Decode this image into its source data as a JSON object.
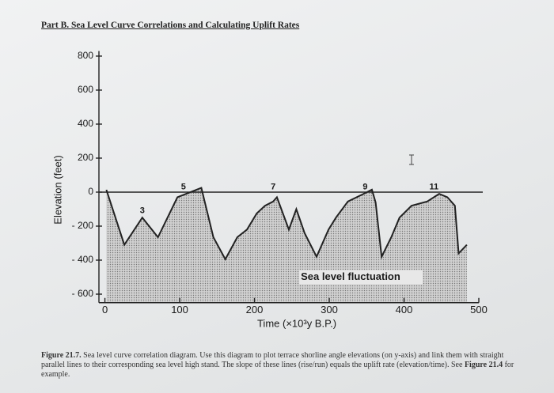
{
  "heading": "Part B. Sea Level Curve Correlations and Calculating Uplift Rates",
  "chart_data": {
    "type": "line",
    "xlabel": "Time (×10³y B.P.)",
    "ylabel": "Elevation (feet)",
    "xlim": [
      -8,
      500
    ],
    "ylim": [
      -650,
      830
    ],
    "xticks": [
      0,
      100,
      200,
      300,
      400,
      500
    ],
    "yticks": [
      800,
      600,
      400,
      200,
      0,
      {
        "value": -200,
        "label": "- 200"
      },
      {
        "value": -400,
        "label": "- 400"
      },
      {
        "value": -600,
        "label": "- 600"
      }
    ],
    "reference_line": 0,
    "series": [
      {
        "name": "Sea level fluctuation",
        "color": "#222222",
        "x": [
          2,
          26,
          50,
          71,
          97,
          129,
          145,
          161,
          177,
          190,
          203,
          214,
          225,
          230,
          246,
          256,
          267,
          283,
          299,
          309,
          325,
          346,
          357,
          362,
          370,
          383,
          394,
          410,
          431,
          447,
          458,
          468,
          473,
          484
        ],
        "values": [
          14,
          -310,
          -150,
          -265,
          -30,
          25,
          -265,
          -395,
          -265,
          -220,
          -125,
          -80,
          -55,
          -30,
          -220,
          -100,
          -240,
          -380,
          -220,
          -150,
          -55,
          -10,
          15,
          -60,
          -380,
          -265,
          -150,
          -80,
          -55,
          -10,
          -30,
          -80,
          -360,
          -310
        ]
      }
    ],
    "annotations": [
      {
        "text": "3",
        "x": 50,
        "y": -110
      },
      {
        "text": "5",
        "x": 105,
        "y": 30
      },
      {
        "text": "7",
        "x": 225,
        "y": 30
      },
      {
        "text": "9",
        "x": 348,
        "y": 30
      },
      {
        "text": "11",
        "x": 440,
        "y": 30
      },
      {
        "text": "Sea level fluctuation",
        "x": 262,
        "y": -500
      }
    ]
  },
  "caption": [
    "Figure 21.7.",
    " Sea level curve correlation diagram. Use this diagram to plot terrace shorline angle elevations (on y-axis) and link them with straight parallel lines to their corresponding sea level high stand. The slope of these lines (rise/run) equals the uplift rate (elevation/time). See ",
    "Figure 21.4",
    " for example."
  ]
}
